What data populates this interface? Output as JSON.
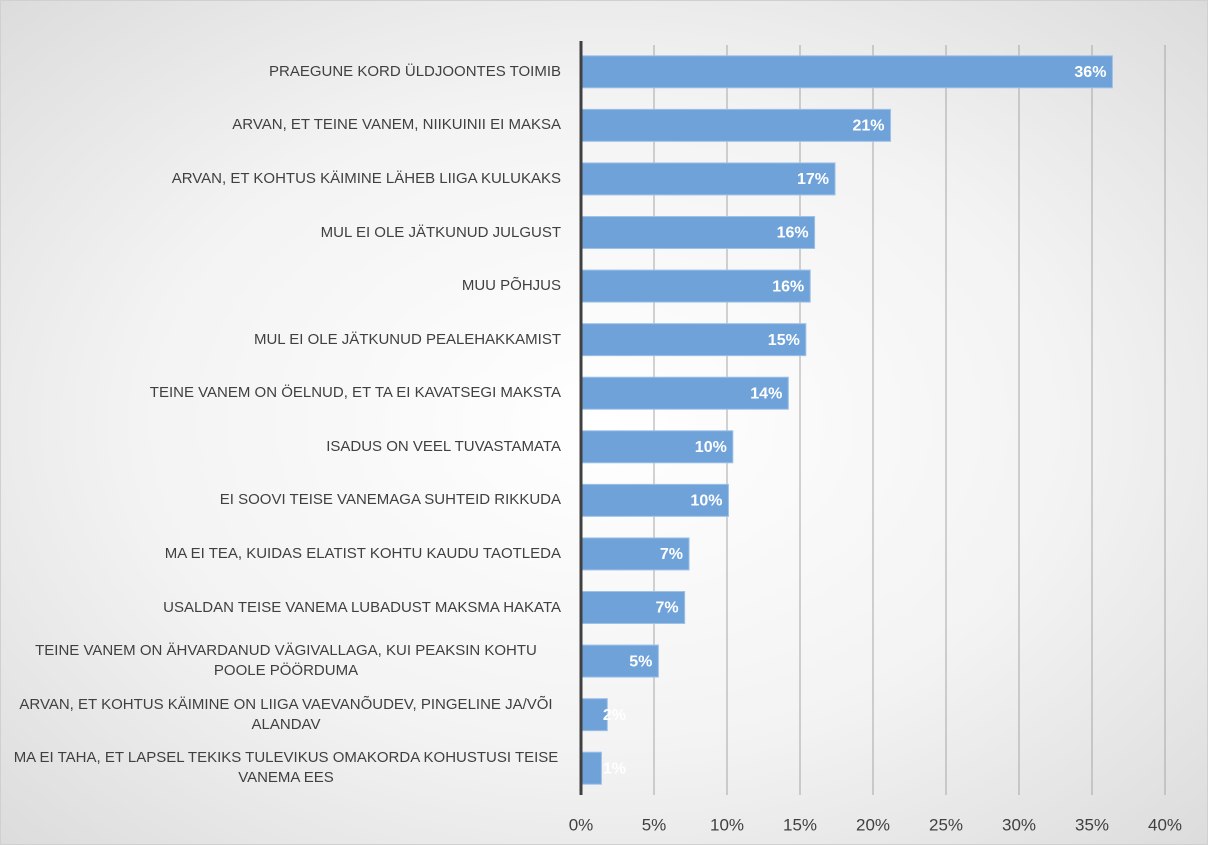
{
  "chart_data": {
    "type": "bar",
    "orientation": "horizontal",
    "categories": [
      "PRAEGUNE KORD ÜLDJOONTES TOIMIB",
      "ARVAN, ET TEINE VANEM, NIIKUINII EI MAKSA",
      "ARVAN, ET KOHTUS KÄIMINE LÄHEB LIIGA KULUKAKS",
      "MUL EI OLE JÄTKUNUD JULGUST",
      "MUU PÕHJUS",
      "MUL EI OLE JÄTKUNUD PEALEHAKKAMIST",
      "TEINE VANEM ON ÖELNUD, ET TA EI KAVATSEGI MAKSTA",
      "ISADUS ON VEEL TUVASTAMATA",
      "EI SOOVI TEISE VANEMAGA SUHTEID RIKKUDA",
      "MA EI TEA, KUIDAS ELATIST KOHTU KAUDU TAOTLEDA",
      "USALDAN TEISE VANEMA LUBADUST MAKSMA HAKATA",
      "TEINE VANEM ON ÄHVARDANUD VÄGIVALLAGA, KUI PEAKSIN KOHTU POOLE PÖÖRDUMA",
      "ARVAN, ET KOHTUS KÄIMINE ON LIIGA VAEVANÕUDEV, PINGELINE JA/VÕI ALANDAV",
      "MA EI TAHA, ET LAPSEL TEKIKS TULEVIKUS OMAKORDA KOHUSTUSI TEISE VANEMA EES"
    ],
    "values": [
      36.4,
      21.2,
      17.4,
      16.0,
      15.7,
      15.4,
      14.2,
      10.4,
      10.1,
      7.4,
      7.1,
      5.3,
      1.8,
      1.4
    ],
    "value_labels": [
      "36%",
      "21%",
      "17%",
      "16%",
      "16%",
      "15%",
      "14%",
      "10%",
      "10%",
      "7%",
      "7%",
      "5%",
      "2%",
      "1%"
    ],
    "color": "#6fa2d9",
    "xlim": [
      0,
      40
    ],
    "xticks": [
      {
        "value": 0,
        "label": "0%"
      },
      {
        "value": 5,
        "label": "5%"
      },
      {
        "value": 10,
        "label": "10%"
      },
      {
        "value": 15,
        "label": "15%"
      },
      {
        "value": 20,
        "label": "20%"
      },
      {
        "value": 25,
        "label": "25%"
      },
      {
        "value": 30,
        "label": "30%"
      },
      {
        "value": 35,
        "label": "35%"
      },
      {
        "value": 40,
        "label": "40%"
      }
    ],
    "grid": true
  }
}
